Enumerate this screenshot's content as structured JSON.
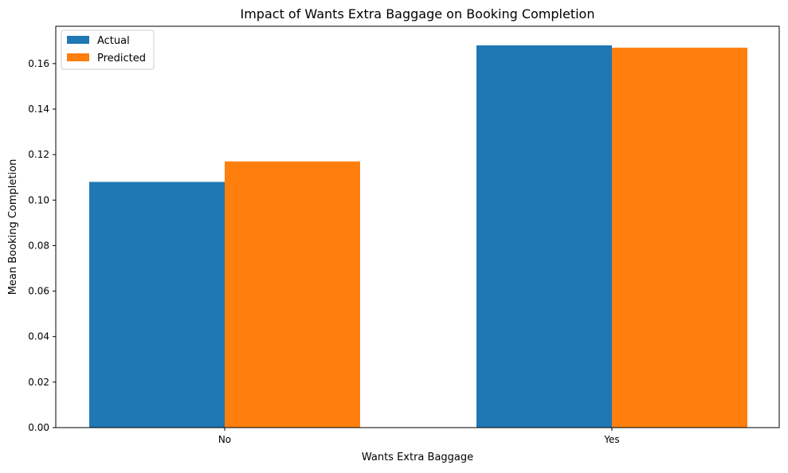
{
  "chart_data": {
    "type": "bar",
    "title": "Impact of Wants Extra Baggage on Booking Completion",
    "xlabel": "Wants Extra Baggage",
    "ylabel": "Mean Booking Completion",
    "categories": [
      "No",
      "Yes"
    ],
    "series": [
      {
        "name": "Actual",
        "values": [
          0.108,
          0.168
        ],
        "color": "#1f77b4"
      },
      {
        "name": "Predicted",
        "values": [
          0.117,
          0.167
        ],
        "color": "#ff7f0e"
      }
    ],
    "ylim": [
      0,
      0.1764
    ],
    "yticks": [
      0.0,
      0.02,
      0.04,
      0.06,
      0.08,
      0.1,
      0.12,
      0.14,
      0.16
    ],
    "ytick_labels": [
      "0.00",
      "0.02",
      "0.04",
      "0.06",
      "0.08",
      "0.10",
      "0.12",
      "0.14",
      "0.16"
    ],
    "grid": false,
    "legend": "top-left"
  }
}
